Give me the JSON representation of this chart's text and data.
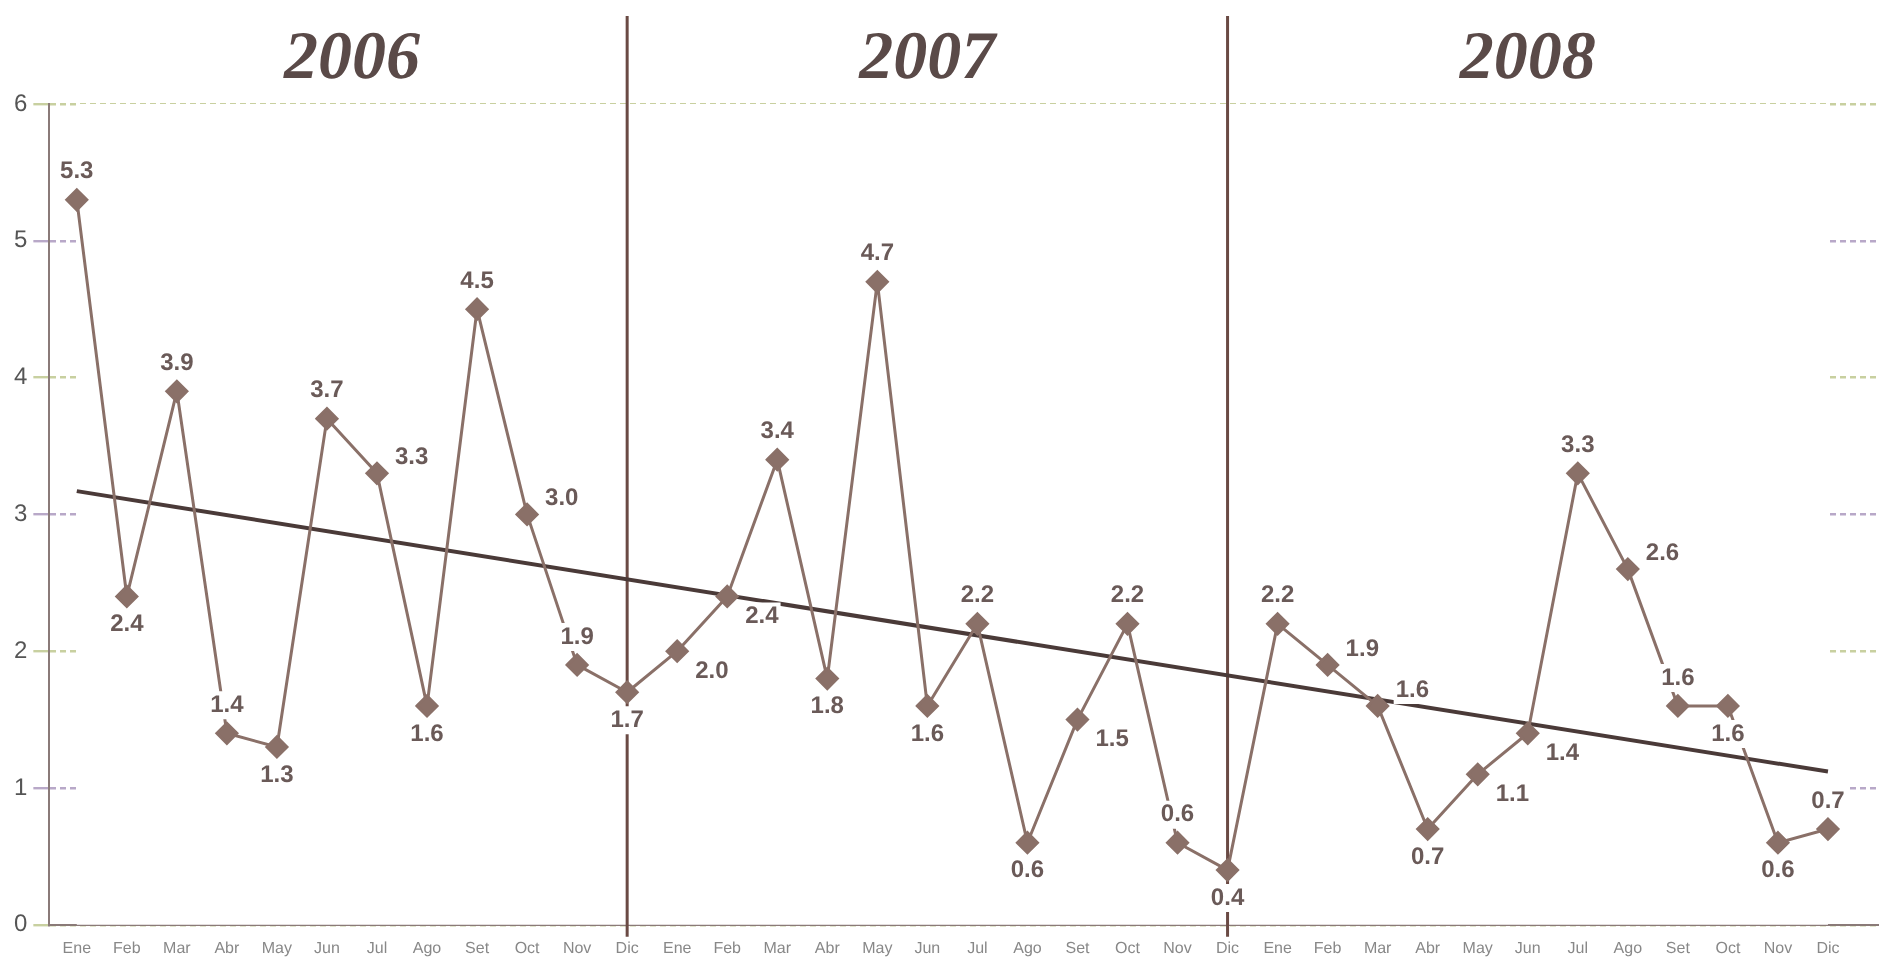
{
  "chart_data": {
    "type": "line",
    "x": [
      "2006-01",
      "2006-02",
      "2006-03",
      "2006-04",
      "2006-05",
      "2006-06",
      "2006-07",
      "2006-08",
      "2006-09",
      "2006-10",
      "2006-11",
      "2006-12",
      "2007-01",
      "2007-02",
      "2007-03",
      "2007-04",
      "2007-05",
      "2007-06",
      "2007-07",
      "2007-08",
      "2007-09",
      "2007-10",
      "2007-11",
      "2007-12",
      "2008-01",
      "2008-02",
      "2008-03",
      "2008-04",
      "2008-05",
      "2008-06",
      "2008-07",
      "2008-08",
      "2008-09",
      "2008-10",
      "2008-11",
      "2008-12"
    ],
    "series": [
      {
        "color": "#8a7068",
        "marker": "diamond",
        "values": [
          5.3,
          2.4,
          3.9,
          1.4,
          1.3,
          3.7,
          3.3,
          1.6,
          4.5,
          3.0,
          1.9,
          1.7,
          2.0,
          2.4,
          3.4,
          1.8,
          4.7,
          1.6,
          2.2,
          0.6,
          1.5,
          2.2,
          0.6,
          0.4,
          2.2,
          1.9,
          1.6,
          0.7,
          1.1,
          1.4,
          3.3,
          2.6,
          1.6,
          1.6,
          0.6,
          0.7
        ],
        "value_labels": [
          "5.3",
          "2.4",
          "3.9",
          "1.4",
          "1.3",
          "3.7",
          "3.3",
          "1.6",
          "4.5",
          "3.0",
          "1.9",
          "1.7",
          "2.0",
          "2.4",
          "3.4",
          "1.8",
          "4.7",
          "1.6",
          "2.2",
          "0.6",
          "1.5",
          "2.2",
          "0.6",
          "0.4",
          "2.2",
          "1.9",
          "1.6",
          "0.7",
          "1.1",
          "1.4",
          "3.3",
          "2.6",
          "1.6",
          "1.6",
          "0.6",
          "0.7"
        ]
      },
      {
        "type": "line",
        "color": "#4a3a38",
        "marker": "none",
        "x": [
          "2006-01",
          "2008-12"
        ],
        "values": [
          3.17,
          1.12
        ]
      }
    ],
    "xlim": [
      "2005-12-15",
      "2009-01-01"
    ],
    "xticks": [
      {
        "value": "2006-01",
        "label": "Ene"
      },
      {
        "value": "2006-02",
        "label": "Feb"
      },
      {
        "value": "2006-03",
        "label": "Mar"
      },
      {
        "value": "2006-04",
        "label": "Abr"
      },
      {
        "value": "2006-05",
        "label": "May"
      },
      {
        "value": "2006-06",
        "label": "Jun"
      },
      {
        "value": "2006-07",
        "label": "Jul"
      },
      {
        "value": "2006-08",
        "label": "Ago"
      },
      {
        "value": "2006-09",
        "label": "Set"
      },
      {
        "value": "2006-10",
        "label": "Oct"
      },
      {
        "value": "2006-11",
        "label": "Nov"
      },
      {
        "value": "2006-12",
        "label": "Dic"
      },
      {
        "value": "2007-01",
        "label": "Ene"
      },
      {
        "value": "2007-02",
        "label": "Feb"
      },
      {
        "value": "2007-03",
        "label": "Mar"
      },
      {
        "value": "2007-04",
        "label": "Abr"
      },
      {
        "value": "2007-05",
        "label": "May"
      },
      {
        "value": "2007-06",
        "label": "Jun"
      },
      {
        "value": "2007-07",
        "label": "Jul"
      },
      {
        "value": "2007-08",
        "label": "Ago"
      },
      {
        "value": "2007-09",
        "label": "Set"
      },
      {
        "value": "2007-10",
        "label": "Oct"
      },
      {
        "value": "2007-11",
        "label": "Nov"
      },
      {
        "value": "2007-12",
        "label": "Dic"
      },
      {
        "value": "2008-01",
        "label": "Ene"
      },
      {
        "value": "2008-02",
        "label": "Feb"
      },
      {
        "value": "2008-03",
        "label": "Mar"
      },
      {
        "value": "2008-04",
        "label": "Abr"
      },
      {
        "value": "2008-05",
        "label": "May"
      },
      {
        "value": "2008-06",
        "label": "Jun"
      },
      {
        "value": "2008-07",
        "label": "Jul"
      },
      {
        "value": "2008-08",
        "label": "Ago"
      },
      {
        "value": "2008-09",
        "label": "Set"
      },
      {
        "value": "2008-10",
        "label": "Oct"
      },
      {
        "value": "2008-11",
        "label": "Nov"
      },
      {
        "value": "2008-12",
        "label": "Dic"
      }
    ],
    "ylim": [
      0,
      6
    ],
    "yticks": [
      0,
      1,
      2,
      3,
      4,
      5,
      6
    ],
    "grid": "y",
    "ref_lines": [
      {
        "axis": "x",
        "value": "2006-12",
        "color": "#6a4a44"
      },
      {
        "axis": "x",
        "value": "2007-12",
        "color": "#6a4a44"
      }
    ],
    "bands": [
      {
        "axis": "x",
        "from": "2006-01",
        "to": "2006-12",
        "label": "2006",
        "color": "#ffffff"
      },
      {
        "axis": "x",
        "from": "2006-12",
        "to": "2007-12",
        "label": "2007",
        "color": "#ffffff"
      },
      {
        "axis": "x",
        "from": "2007-12",
        "to": "2008-12",
        "label": "2008",
        "color": "#ffffff"
      }
    ]
  }
}
